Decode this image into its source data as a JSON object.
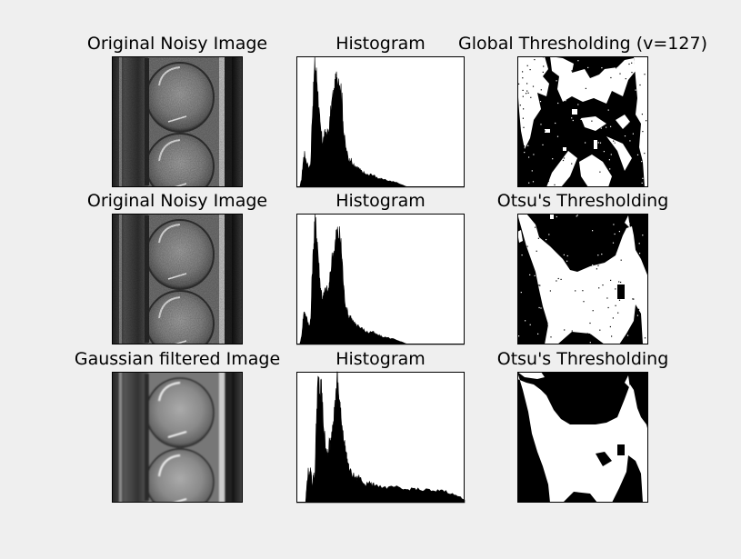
{
  "figure": {
    "background": "#efefef",
    "rows": [
      {
        "image_title": "Original Noisy Image",
        "hist_title": "Histogram",
        "thresh_title": "Global Thresholding (v=127)",
        "image_variant": "noisy",
        "thresh_variant": "global"
      },
      {
        "image_title": "Original Noisy Image",
        "hist_title": "Histogram",
        "thresh_title": "Otsu's Thresholding",
        "image_variant": "noisy",
        "thresh_variant": "otsu"
      },
      {
        "image_title": "Gaussian filtered Image",
        "hist_title": "Histogram",
        "thresh_title": "Otsu's Thresholding",
        "image_variant": "blurred",
        "thresh_variant": "otsu-blurred"
      }
    ]
  },
  "chart_data": [
    {
      "type": "area",
      "title": "Histogram",
      "xlim": [
        0,
        256
      ],
      "ylim": [
        0,
        1
      ],
      "series": [
        {
          "x": [
            0,
            5,
            8,
            10,
            12,
            14,
            18,
            20,
            22,
            24,
            26,
            28,
            30,
            32,
            34,
            36,
            38,
            40,
            42,
            45,
            48,
            50,
            52,
            55,
            58,
            60,
            62,
            65,
            68,
            70,
            72,
            75,
            78,
            80,
            82,
            85,
            88,
            90,
            92,
            94,
            96,
            100,
            105,
            110,
            115,
            120,
            125,
            130,
            140,
            150,
            160,
            170,
            180,
            190,
            200,
            210,
            230,
            256
          ],
          "y": [
            0,
            0,
            0.06,
            0.18,
            0.26,
            0.22,
            0.16,
            0.14,
            0.2,
            0.55,
            0.72,
            0.95,
            0.88,
            0.78,
            0.62,
            0.46,
            0.4,
            0.34,
            0.38,
            0.42,
            0.4,
            0.44,
            0.56,
            0.68,
            0.72,
            0.8,
            0.85,
            0.84,
            0.75,
            0.62,
            0.42,
            0.3,
            0.24,
            0.2,
            0.22,
            0.18,
            0.16,
            0.15,
            0.14,
            0.15,
            0.13,
            0.12,
            0.1,
            0.09,
            0.1,
            0.08,
            0.07,
            0.06,
            0.05,
            0.04,
            0.02,
            0,
            0,
            0,
            0,
            0,
            0,
            0
          ]
        }
      ]
    },
    {
      "type": "area",
      "title": "Histogram",
      "xlim": [
        0,
        256
      ],
      "ylim": [
        0,
        1
      ],
      "series": [
        {
          "x": [
            0,
            5,
            8,
            10,
            12,
            14,
            18,
            20,
            22,
            24,
            26,
            28,
            30,
            32,
            34,
            36,
            38,
            40,
            42,
            45,
            48,
            50,
            52,
            55,
            58,
            60,
            62,
            65,
            68,
            70,
            72,
            75,
            78,
            80,
            82,
            85,
            88,
            90,
            92,
            94,
            96,
            100,
            105,
            110,
            115,
            120,
            125,
            130,
            140,
            150,
            160,
            170,
            180,
            190,
            200,
            210,
            230,
            256
          ],
          "y": [
            0,
            0,
            0.06,
            0.18,
            0.26,
            0.22,
            0.16,
            0.14,
            0.2,
            0.55,
            0.72,
            0.95,
            0.88,
            0.78,
            0.62,
            0.46,
            0.4,
            0.34,
            0.38,
            0.42,
            0.4,
            0.44,
            0.56,
            0.68,
            0.72,
            0.8,
            0.85,
            0.84,
            0.75,
            0.62,
            0.42,
            0.3,
            0.24,
            0.2,
            0.22,
            0.18,
            0.16,
            0.15,
            0.14,
            0.15,
            0.13,
            0.12,
            0.1,
            0.09,
            0.1,
            0.08,
            0.07,
            0.06,
            0.05,
            0.04,
            0.02,
            0,
            0,
            0,
            0,
            0,
            0,
            0
          ]
        }
      ]
    },
    {
      "type": "area",
      "title": "Histogram",
      "xlim": [
        0,
        256
      ],
      "ylim": [
        0,
        1
      ],
      "series": [
        {
          "x": [
            0,
            14,
            16,
            18,
            20,
            22,
            24,
            26,
            28,
            30,
            32,
            34,
            36,
            38,
            40,
            42,
            44,
            46,
            48,
            50,
            52,
            54,
            56,
            58,
            60,
            62,
            64,
            66,
            68,
            70,
            72,
            74,
            76,
            78,
            80,
            84,
            88,
            92,
            96,
            100,
            105,
            110,
            115,
            120,
            130,
            140,
            150,
            160,
            170,
            180,
            190,
            200,
            210,
            220,
            230,
            240,
            250,
            256
          ],
          "y": [
            0,
            0,
            0.14,
            0.24,
            0.2,
            0.26,
            0.12,
            0.22,
            0.18,
            0.55,
            0.86,
            0.92,
            0.8,
            0.9,
            0.7,
            0.55,
            0.45,
            0.4,
            0.34,
            0.46,
            0.44,
            0.56,
            0.66,
            0.7,
            0.8,
            0.94,
            0.84,
            0.76,
            0.62,
            0.58,
            0.5,
            0.42,
            0.36,
            0.3,
            0.26,
            0.22,
            0.2,
            0.18,
            0.2,
            0.16,
            0.14,
            0.16,
            0.13,
            0.14,
            0.12,
            0.11,
            0.12,
            0.1,
            0.1,
            0.11,
            0.09,
            0.1,
            0.08,
            0.1,
            0.08,
            0.06,
            0.04,
            0.02
          ]
        }
      ]
    }
  ]
}
